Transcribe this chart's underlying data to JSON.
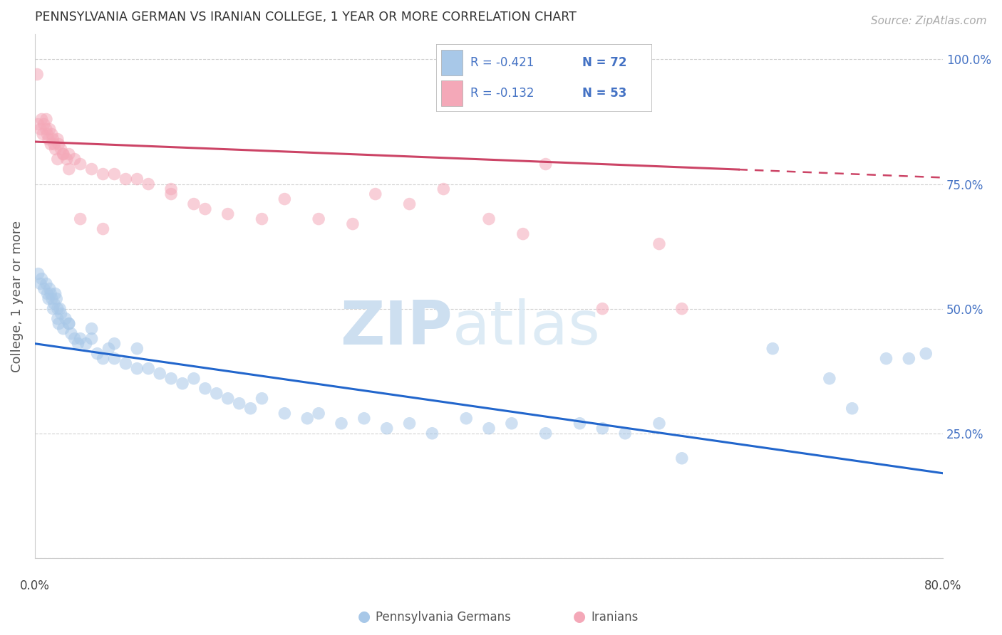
{
  "title": "PENNSYLVANIA GERMAN VS IRANIAN COLLEGE, 1 YEAR OR MORE CORRELATION CHART",
  "source": "Source: ZipAtlas.com",
  "ylabel": "College, 1 year or more",
  "legend_blue_r": "R = -0.421",
  "legend_blue_n": "N = 72",
  "legend_pink_r": "R = -0.132",
  "legend_pink_n": "N = 53",
  "legend_blue_label": "Pennsylvania Germans",
  "legend_pink_label": "Iranians",
  "blue_color": "#A8C8E8",
  "pink_color": "#F4A8B8",
  "blue_line_color": "#2266CC",
  "pink_line_color": "#CC4466",
  "legend_text_color": "#4472C4",
  "accent_color": "#4472C4",
  "xlim": [
    0,
    80
  ],
  "ylim": [
    0,
    105
  ],
  "background_color": "#ffffff",
  "grid_color": "#cccccc",
  "blue_x": [
    0.3,
    0.5,
    0.6,
    0.8,
    1.0,
    1.1,
    1.2,
    1.3,
    1.4,
    1.5,
    1.6,
    1.7,
    1.8,
    1.9,
    2.0,
    2.1,
    2.2,
    2.3,
    2.5,
    2.7,
    3.0,
    3.2,
    3.5,
    3.8,
    4.0,
    4.5,
    5.0,
    5.5,
    6.0,
    6.5,
    7.0,
    8.0,
    9.0,
    10.0,
    11.0,
    12.0,
    13.0,
    14.0,
    15.0,
    16.0,
    17.0,
    18.0,
    19.0,
    20.0,
    22.0,
    24.0,
    25.0,
    27.0,
    29.0,
    31.0,
    33.0,
    35.0,
    38.0,
    40.0,
    42.0,
    45.0,
    48.0,
    50.0,
    52.0,
    55.0,
    57.0,
    65.0,
    70.0,
    72.0,
    75.0,
    77.0,
    78.5,
    2.0,
    3.0,
    5.0,
    7.0,
    9.0
  ],
  "blue_y": [
    57,
    55,
    56,
    54,
    55,
    53,
    52,
    54,
    53,
    52,
    50,
    51,
    53,
    52,
    48,
    47,
    50,
    49,
    46,
    48,
    47,
    45,
    44,
    43,
    44,
    43,
    46,
    41,
    40,
    42,
    40,
    39,
    38,
    38,
    37,
    36,
    35,
    36,
    34,
    33,
    32,
    31,
    30,
    32,
    29,
    28,
    29,
    27,
    28,
    26,
    27,
    25,
    28,
    26,
    27,
    25,
    27,
    26,
    25,
    27,
    20,
    42,
    36,
    30,
    40,
    40,
    41,
    50,
    47,
    44,
    43,
    42
  ],
  "pink_x": [
    0.2,
    0.3,
    0.5,
    0.6,
    0.7,
    0.8,
    1.0,
    1.1,
    1.2,
    1.3,
    1.4,
    1.5,
    1.6,
    1.7,
    1.8,
    2.0,
    2.1,
    2.3,
    2.5,
    2.8,
    3.0,
    3.5,
    4.0,
    5.0,
    6.0,
    7.0,
    8.0,
    9.0,
    10.0,
    12.0,
    14.0,
    15.0,
    17.0,
    20.0,
    22.0,
    25.0,
    28.0,
    30.0,
    33.0,
    36.0,
    40.0,
    43.0,
    45.0,
    50.0,
    55.0,
    12.0,
    2.5,
    4.0,
    6.0,
    1.0,
    2.0,
    3.0,
    57.0
  ],
  "pink_y": [
    97,
    87,
    86,
    88,
    85,
    87,
    86,
    85,
    84,
    86,
    83,
    85,
    84,
    83,
    82,
    84,
    83,
    82,
    81,
    80,
    81,
    80,
    79,
    78,
    77,
    77,
    76,
    76,
    75,
    73,
    71,
    70,
    69,
    68,
    72,
    68,
    67,
    73,
    71,
    74,
    68,
    65,
    79,
    50,
    63,
    74,
    81,
    68,
    66,
    88,
    80,
    78,
    50
  ]
}
